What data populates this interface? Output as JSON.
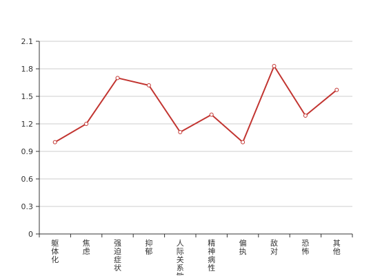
{
  "chart_data": {
    "type": "line",
    "categories": [
      "躯体化",
      "焦虑",
      "强迫症状",
      "抑郁",
      "人际关系敏感",
      "精神病性",
      "偏执",
      "敌对",
      "恐怖",
      "其他"
    ],
    "series": [
      {
        "values": [
          1.0,
          1.2,
          1.7,
          1.62,
          1.11,
          1.3,
          1.0,
          1.83,
          1.29,
          1.57
        ]
      }
    ],
    "ylim": [
      0,
      2.1
    ],
    "yticks": [
      0,
      0.3,
      0.6,
      0.9,
      1.2,
      1.5,
      1.8,
      2.1
    ],
    "ytick_labels": [
      "0",
      "0.3",
      "0.6",
      "0.9",
      "1.2",
      "1.5",
      "1.8",
      "2.1"
    ],
    "grid": true,
    "colors": {
      "line": "#c23531",
      "grid": "#cccccc",
      "axis": "#333333"
    }
  }
}
